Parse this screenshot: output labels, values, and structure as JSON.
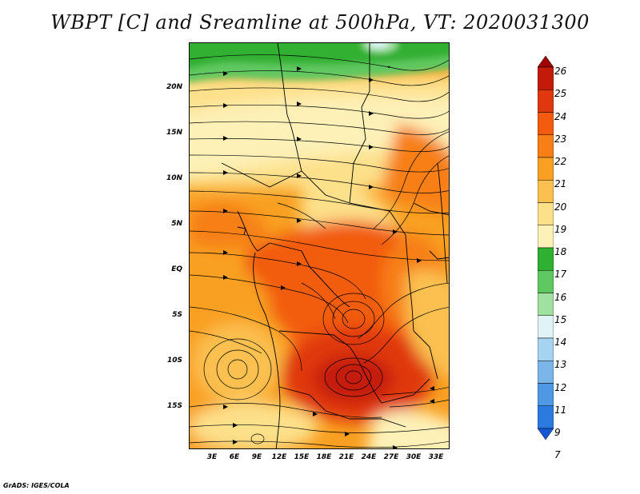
{
  "title": "WBPT [C] and Sreamline at 500hPa, VT: 2020031300",
  "credit": "GrADS: IGES/COLA",
  "map": {
    "lat_labels": [
      "20N",
      "15N",
      "10N",
      "5N",
      "EQ",
      "5S",
      "10S",
      "15S"
    ],
    "lon_labels": [
      "3E",
      "6E",
      "9E",
      "12E",
      "15E",
      "18E",
      "21E",
      "24E",
      "27E",
      "30E",
      "33E"
    ],
    "field": "Wet-bulb potential temperature (C)",
    "overlay": "Streamlines at 500hPa"
  },
  "colorbar": {
    "labels": [
      "26",
      "25",
      "24",
      "23",
      "22",
      "21",
      "20",
      "19",
      "18",
      "17",
      "16",
      "15",
      "14",
      "13",
      "12",
      "11",
      "9",
      "7"
    ],
    "colors": [
      "#a00000",
      "#c41a0a",
      "#e0380e",
      "#f25b10",
      "#f77f16",
      "#f9a022",
      "#fbc050",
      "#fde08a",
      "#fdf1b8",
      "#30b030",
      "#60c860",
      "#a0e0a0",
      "#e0f4f8",
      "#a6d4f0",
      "#7ab6ea",
      "#4e98e4",
      "#2a7ae0",
      "#1458d8"
    ]
  }
}
